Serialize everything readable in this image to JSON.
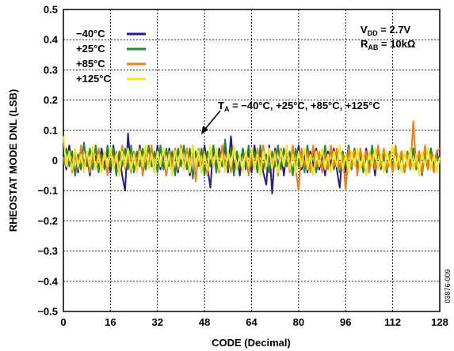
{
  "chart_data": {
    "type": "line",
    "xlabel": "CODE (Decimal)",
    "ylabel": "RHEOSTAT MODE DNL (LSB)",
    "xlim": [
      0,
      128
    ],
    "ylim": [
      -0.5,
      0.5
    ],
    "x_ticks": [
      "0",
      "16",
      "32",
      "48",
      "64",
      "80",
      "96",
      "112",
      "128"
    ],
    "y_ticks": [
      "0.5",
      "0.4",
      "0.3",
      "0.2",
      "0.1",
      "0",
      "−0.1",
      "−0.2",
      "−0.3",
      "−0.4",
      "−0.5"
    ],
    "grid": true,
    "legend_position": "top-left",
    "conditions": {
      "vdd": {
        "main": "V",
        "sub": "DD",
        "rest": " = 2.7V"
      },
      "rab": {
        "main": "R",
        "sub": "AB",
        "rest": " = 10kΩ"
      }
    },
    "annotation": {
      "main": "T",
      "sub": "A",
      "rest": " = −40°C, +25°C, +85°C, +125°C"
    },
    "figure_id": "03876-009",
    "series": [
      {
        "name": "−40°C",
        "color": "#2b1a8c",
        "x": [
          0,
          1,
          2,
          3,
          4,
          5,
          6,
          7,
          8,
          9,
          10,
          11,
          12,
          13,
          14,
          15,
          16,
          17,
          18,
          19,
          20,
          21,
          22,
          23,
          24,
          25,
          26,
          27,
          28,
          29,
          30,
          31,
          32,
          33,
          34,
          35,
          36,
          37,
          38,
          39,
          40,
          41,
          42,
          43,
          44,
          45,
          46,
          47,
          48,
          49,
          50,
          51,
          52,
          53,
          54,
          55,
          56,
          57,
          58,
          59,
          60,
          61,
          62,
          63,
          64,
          65,
          66,
          67,
          68,
          69,
          70,
          71,
          72,
          73,
          74,
          75,
          76,
          77,
          78,
          79,
          80,
          81,
          82,
          83,
          84,
          85,
          86,
          87,
          88,
          89,
          90,
          91,
          92,
          93,
          94,
          95,
          96,
          97,
          98,
          99,
          100,
          101,
          102,
          103,
          104,
          105,
          106,
          107,
          108,
          109,
          110,
          111,
          112,
          113,
          114,
          115,
          116,
          117,
          118,
          119,
          120,
          121,
          122,
          123,
          124,
          125,
          126,
          127,
          128
        ],
        "values": [
          0.02,
          -0.03,
          0.05,
          -0.02,
          0.03,
          -0.04,
          0.04,
          -0.01,
          0.02,
          -0.05,
          0.03,
          0.01,
          -0.03,
          0.04,
          -0.02,
          0.03,
          -0.04,
          0.05,
          -0.03,
          0.02,
          -0.05,
          -0.1,
          0.09,
          -0.04,
          0.03,
          -0.02,
          0.05,
          -0.03,
          0.04,
          -0.02,
          0.01,
          -0.04,
          0.05,
          -0.03,
          0.02,
          -0.05,
          0.04,
          -0.02,
          0.03,
          -0.04,
          0.05,
          -0.03,
          0.02,
          -0.05,
          0.04,
          -0.02,
          0.03,
          -0.04,
          0.05,
          -0.02,
          -0.09,
          0.05,
          -0.03,
          0.04,
          -0.02,
          0.05,
          -0.04,
          0.08,
          -0.03,
          0.02,
          -0.05,
          0.04,
          -0.02,
          0.03,
          -0.04,
          0.05,
          -0.02,
          0.03,
          -0.04,
          -0.08,
          0.05,
          -0.11,
          0.04,
          -0.02,
          0.03,
          -0.05,
          0.04,
          -0.02,
          0.03,
          -0.04,
          0.05,
          -0.03,
          0.02,
          -0.04,
          0.03,
          -0.02,
          0.04,
          -0.03,
          0.02,
          -0.05,
          0.03,
          -0.02,
          0.04,
          -0.03,
          -0.09,
          0.03,
          -0.04,
          0.05,
          -0.02,
          0.03,
          -0.04,
          0.02,
          -0.03,
          0.04,
          -0.02,
          0.03,
          -0.05,
          0.04,
          -0.02,
          0.03,
          -0.04,
          0.02,
          -0.03,
          0.04,
          -0.02,
          0.03,
          -0.04,
          0.02,
          -0.03,
          0.04,
          -0.02,
          0.03,
          -0.04,
          0.02,
          -0.03,
          0.04,
          -0.02,
          0.03,
          -0.02
        ]
      },
      {
        "name": "+25°C",
        "color": "#1f8a3c",
        "x": [
          0,
          1,
          2,
          3,
          4,
          5,
          6,
          7,
          8,
          9,
          10,
          11,
          12,
          13,
          14,
          15,
          16,
          17,
          18,
          19,
          20,
          21,
          22,
          23,
          24,
          25,
          26,
          27,
          28,
          29,
          30,
          31,
          32,
          33,
          34,
          35,
          36,
          37,
          38,
          39,
          40,
          41,
          42,
          43,
          44,
          45,
          46,
          47,
          48,
          49,
          50,
          51,
          52,
          53,
          54,
          55,
          56,
          57,
          58,
          59,
          60,
          61,
          62,
          63,
          64,
          65,
          66,
          67,
          68,
          69,
          70,
          71,
          72,
          73,
          74,
          75,
          76,
          77,
          78,
          79,
          80,
          81,
          82,
          83,
          84,
          85,
          86,
          87,
          88,
          89,
          90,
          91,
          92,
          93,
          94,
          95,
          96,
          97,
          98,
          99,
          100,
          101,
          102,
          103,
          104,
          105,
          106,
          107,
          108,
          109,
          110,
          111,
          112,
          113,
          114,
          115,
          116,
          117,
          118,
          119,
          120,
          121,
          122,
          123,
          124,
          125,
          126,
          127,
          128
        ],
        "values": [
          -0.01,
          0.04,
          -0.02,
          0.03,
          -0.05,
          0.02,
          -0.03,
          0.06,
          -0.02,
          0.04,
          -0.03,
          0.05,
          -0.04,
          0.02,
          -0.03,
          0.05,
          -0.02,
          0.04,
          -0.05,
          0.03,
          -0.02,
          0.04,
          -0.03,
          0.05,
          -0.04,
          0.03,
          -0.02,
          0.04,
          -0.03,
          0.05,
          -0.02,
          0.03,
          -0.04,
          0.05,
          -0.03,
          0.04,
          -0.02,
          0.03,
          -0.05,
          0.04,
          -0.02,
          0.05,
          -0.03,
          0.04,
          -0.06,
          0.03,
          -0.02,
          0.04,
          -0.05,
          0.03,
          -0.02,
          0.05,
          -0.04,
          0.03,
          -0.02,
          0.07,
          -0.03,
          0.04,
          -0.05,
          0.03,
          -0.02,
          0.04,
          -0.03,
          0.05,
          -0.02,
          0.03,
          -0.04,
          0.05,
          -0.03,
          0.02,
          -0.04,
          0.03,
          -0.02,
          0.05,
          -0.03,
          0.04,
          -0.02,
          0.03,
          -0.05,
          0.04,
          -0.02,
          0.03,
          -0.04,
          0.05,
          -0.02,
          0.03,
          -0.04,
          0.02,
          -0.03,
          0.05,
          -0.02,
          0.04,
          -0.03,
          0.02,
          -0.04,
          0.03,
          -0.02,
          0.05,
          -0.03,
          0.04,
          -0.02,
          0.03,
          -0.04,
          0.02,
          -0.03,
          0.05,
          -0.02,
          0.04,
          -0.03,
          0.02,
          -0.04,
          0.03,
          -0.02,
          0.04,
          -0.03,
          0.02,
          -0.04,
          0.03,
          -0.02,
          0.04,
          -0.03,
          0.02,
          -0.05,
          0.03,
          -0.02,
          0.04,
          -0.03,
          0.02,
          -0.01
        ]
      },
      {
        "name": "+85°C",
        "color": "#f07d1a",
        "x": [
          0,
          1,
          2,
          3,
          4,
          5,
          6,
          7,
          8,
          9,
          10,
          11,
          12,
          13,
          14,
          15,
          16,
          17,
          18,
          19,
          20,
          21,
          22,
          23,
          24,
          25,
          26,
          27,
          28,
          29,
          30,
          31,
          32,
          33,
          34,
          35,
          36,
          37,
          38,
          39,
          40,
          41,
          42,
          43,
          44,
          45,
          46,
          47,
          48,
          49,
          50,
          51,
          52,
          53,
          54,
          55,
          56,
          57,
          58,
          59,
          60,
          61,
          62,
          63,
          64,
          65,
          66,
          67,
          68,
          69,
          70,
          71,
          72,
          73,
          74,
          75,
          76,
          77,
          78,
          79,
          80,
          81,
          82,
          83,
          84,
          85,
          86,
          87,
          88,
          89,
          90,
          91,
          92,
          93,
          94,
          95,
          96,
          97,
          98,
          99,
          100,
          101,
          102,
          103,
          104,
          105,
          106,
          107,
          108,
          109,
          110,
          111,
          112,
          113,
          114,
          115,
          116,
          117,
          118,
          119,
          120,
          121,
          122,
          123,
          124,
          125,
          126,
          127,
          128
        ],
        "values": [
          0.01,
          -0.02,
          0.03,
          -0.04,
          0.02,
          -0.03,
          0.05,
          -0.02,
          0.03,
          -0.04,
          0.02,
          -0.03,
          0.04,
          -0.02,
          0.03,
          -0.05,
          0.04,
          -0.02,
          0.03,
          -0.04,
          0.05,
          -0.03,
          0.02,
          -0.04,
          0.03,
          -0.02,
          0.04,
          -0.05,
          0.03,
          -0.02,
          0.05,
          -0.04,
          0.03,
          -0.02,
          0.04,
          -0.05,
          0.03,
          -0.02,
          0.04,
          -0.03,
          0.05,
          -0.02,
          0.04,
          -0.03,
          0.05,
          -0.07,
          0.04,
          -0.02,
          0.03,
          -0.05,
          0.04,
          -0.02,
          0.03,
          -0.04,
          0.05,
          -0.02,
          0.03,
          -0.04,
          0.05,
          -0.03,
          0.02,
          -0.04,
          0.03,
          -0.05,
          0.02,
          -0.03,
          0.04,
          -0.02,
          0.05,
          -0.03,
          0.04,
          -0.02,
          0.03,
          -0.05,
          0.04,
          -0.02,
          0.03,
          -0.04,
          0.05,
          -0.03,
          -0.1,
          0.04,
          -0.02,
          0.03,
          -0.04,
          0.05,
          -0.02,
          0.03,
          -0.04,
          0.02,
          -0.03,
          0.05,
          -0.02,
          0.04,
          -0.03,
          0.02,
          -0.1,
          0.04,
          -0.02,
          0.03,
          -0.05,
          0.04,
          -0.02,
          0.03,
          -0.04,
          0.02,
          -0.03,
          0.05,
          -0.02,
          0.04,
          -0.03,
          0.02,
          -0.04,
          0.05,
          -0.02,
          0.03,
          -0.04,
          0.02,
          -0.03,
          0.13,
          -0.02,
          0.03,
          -0.04,
          0.05,
          -0.03,
          0.02,
          -0.04,
          0.03,
          0.04
        ]
      },
      {
        "name": "+125°C",
        "color": "#f2e81a",
        "x": [
          0,
          1,
          2,
          3,
          4,
          5,
          6,
          7,
          8,
          9,
          10,
          11,
          12,
          13,
          14,
          15,
          16,
          17,
          18,
          19,
          20,
          21,
          22,
          23,
          24,
          25,
          26,
          27,
          28,
          29,
          30,
          31,
          32,
          33,
          34,
          35,
          36,
          37,
          38,
          39,
          40,
          41,
          42,
          43,
          44,
          45,
          46,
          47,
          48,
          49,
          50,
          51,
          52,
          53,
          54,
          55,
          56,
          57,
          58,
          59,
          60,
          61,
          62,
          63,
          64,
          65,
          66,
          67,
          68,
          69,
          70,
          71,
          72,
          73,
          74,
          75,
          76,
          77,
          78,
          79,
          80,
          81,
          82,
          83,
          84,
          85,
          86,
          87,
          88,
          89,
          90,
          91,
          92,
          93,
          94,
          95,
          96,
          97,
          98,
          99,
          100,
          101,
          102,
          103,
          104,
          105,
          106,
          107,
          108,
          109,
          110,
          111,
          112,
          113,
          114,
          115,
          116,
          117,
          118,
          119,
          120,
          121,
          122,
          123,
          124,
          125,
          126,
          127,
          128
        ],
        "values": [
          0.08,
          -0.02,
          0.03,
          -0.03,
          0.04,
          -0.02,
          0.02,
          -0.04,
          0.03,
          -0.02,
          0.05,
          -0.03,
          0.02,
          -0.04,
          0.03,
          -0.02,
          0.04,
          -0.03,
          0.02,
          -0.05,
          0.03,
          -0.02,
          0.04,
          -0.03,
          0.02,
          -0.04,
          0.03,
          -0.02,
          0.05,
          -0.03,
          0.02,
          -0.04,
          0.03,
          -0.02,
          0.04,
          -0.03,
          0.02,
          -0.05,
          0.03,
          -0.02,
          0.04,
          -0.03,
          0.02,
          -0.04,
          0.05,
          -0.02,
          0.03,
          -0.04,
          0.02,
          -0.03,
          0.05,
          -0.02,
          0.04,
          -0.03,
          0.02,
          -0.04,
          0.03,
          -0.02,
          0.05,
          -0.03,
          0.02,
          -0.04,
          0.03,
          -0.02,
          0.04,
          -0.03,
          0.02,
          -0.05,
          0.03,
          -0.02,
          0.04,
          -0.03,
          0.02,
          -0.04,
          0.03,
          -0.02,
          0.05,
          -0.03,
          0.02,
          -0.04,
          0.03,
          -0.02,
          0.04,
          -0.03,
          0.02,
          -0.05,
          0.03,
          -0.02,
          0.04,
          -0.03,
          0.02,
          -0.04,
          0.03,
          -0.02,
          0.05,
          -0.03,
          0.02,
          -0.04,
          0.03,
          -0.02,
          0.04,
          -0.03,
          0.02,
          -0.05,
          0.03,
          -0.02,
          0.04,
          -0.03,
          0.02,
          -0.04,
          0.03,
          -0.02,
          0.05,
          -0.03,
          0.02,
          -0.04,
          0.03,
          -0.02,
          0.04,
          -0.03,
          0.02,
          -0.05,
          0.03,
          -0.02,
          0.04,
          -0.03,
          0.02,
          -0.04,
          0.01
        ]
      }
    ]
  }
}
